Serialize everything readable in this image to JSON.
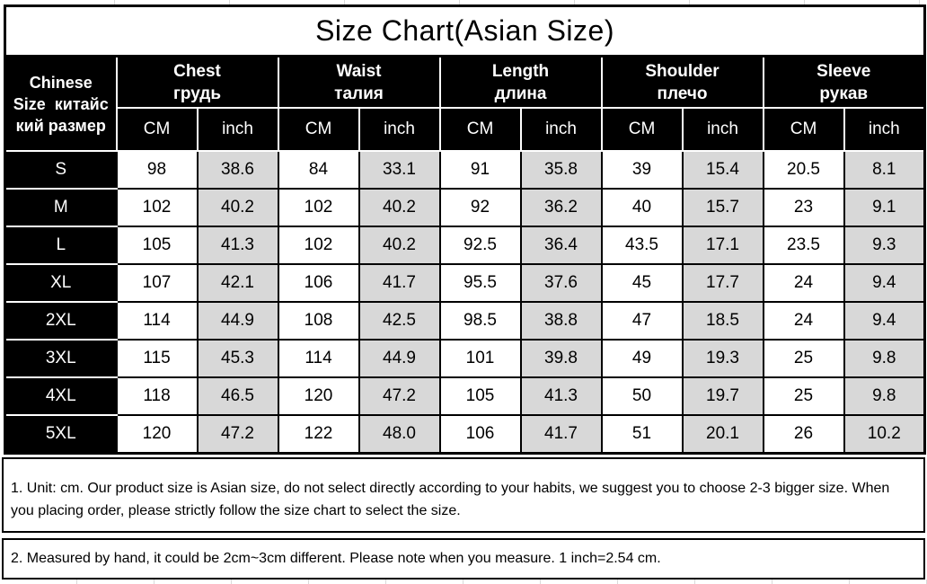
{
  "title": "Size Chart(Asian Size)",
  "table": {
    "corner_header": "Chinese\nSize  китайс\nкий размер",
    "columns": [
      {
        "en": "Chest",
        "ru": "грудь"
      },
      {
        "en": "Waist",
        "ru": "талия"
      },
      {
        "en": "Length",
        "ru": "длина"
      },
      {
        "en": "Shoulder",
        "ru": "плечо"
      },
      {
        "en": "Sleeve",
        "ru": "рукав"
      }
    ],
    "unit_headers": {
      "cm": "CM",
      "inch": "inch"
    },
    "rows": [
      {
        "size": "S",
        "values": [
          "98",
          "38.6",
          "84",
          "33.1",
          "91",
          "35.8",
          "39",
          "15.4",
          "20.5",
          "8.1"
        ]
      },
      {
        "size": "M",
        "values": [
          "102",
          "40.2",
          "102",
          "40.2",
          "92",
          "36.2",
          "40",
          "15.7",
          "23",
          "9.1"
        ]
      },
      {
        "size": "L",
        "values": [
          "105",
          "41.3",
          "102",
          "40.2",
          "92.5",
          "36.4",
          "43.5",
          "17.1",
          "23.5",
          "9.3"
        ]
      },
      {
        "size": "XL",
        "values": [
          "107",
          "42.1",
          "106",
          "41.7",
          "95.5",
          "37.6",
          "45",
          "17.7",
          "24",
          "9.4"
        ]
      },
      {
        "size": "2XL",
        "values": [
          "114",
          "44.9",
          "108",
          "42.5",
          "98.5",
          "38.8",
          "47",
          "18.5",
          "24",
          "9.4"
        ]
      },
      {
        "size": "3XL",
        "values": [
          "115",
          "45.3",
          "114",
          "44.9",
          "101",
          "39.8",
          "49",
          "19.3",
          "25",
          "9.8"
        ]
      },
      {
        "size": "4XL",
        "values": [
          "118",
          "46.5",
          "120",
          "47.2",
          "105",
          "41.3",
          "50",
          "19.7",
          "25",
          "9.8"
        ]
      },
      {
        "size": "5XL",
        "values": [
          "120",
          "47.2",
          "122",
          "48.0",
          "106",
          "41.7",
          "51",
          "20.1",
          "26",
          "10.2"
        ]
      }
    ]
  },
  "notes": [
    "1. Unit: cm. Our product size is Asian size, do not select directly according to your habits, we suggest you to choose 2-3 bigger size. When\nyou placing order, please strictly follow the size chart to select the size.",
    "2. Measured by hand, it could be 2cm~3cm different. Please note when you measure. 1 inch=2.54 cm."
  ],
  "colors": {
    "header_bg": "#000000",
    "header_text": "#ffffff",
    "cm_cell_bg": "#ffffff",
    "inch_cell_bg": "#d8d8d8",
    "border": "#000000",
    "page_bg": "#ffffff",
    "gridline": "#d9d9d9"
  }
}
